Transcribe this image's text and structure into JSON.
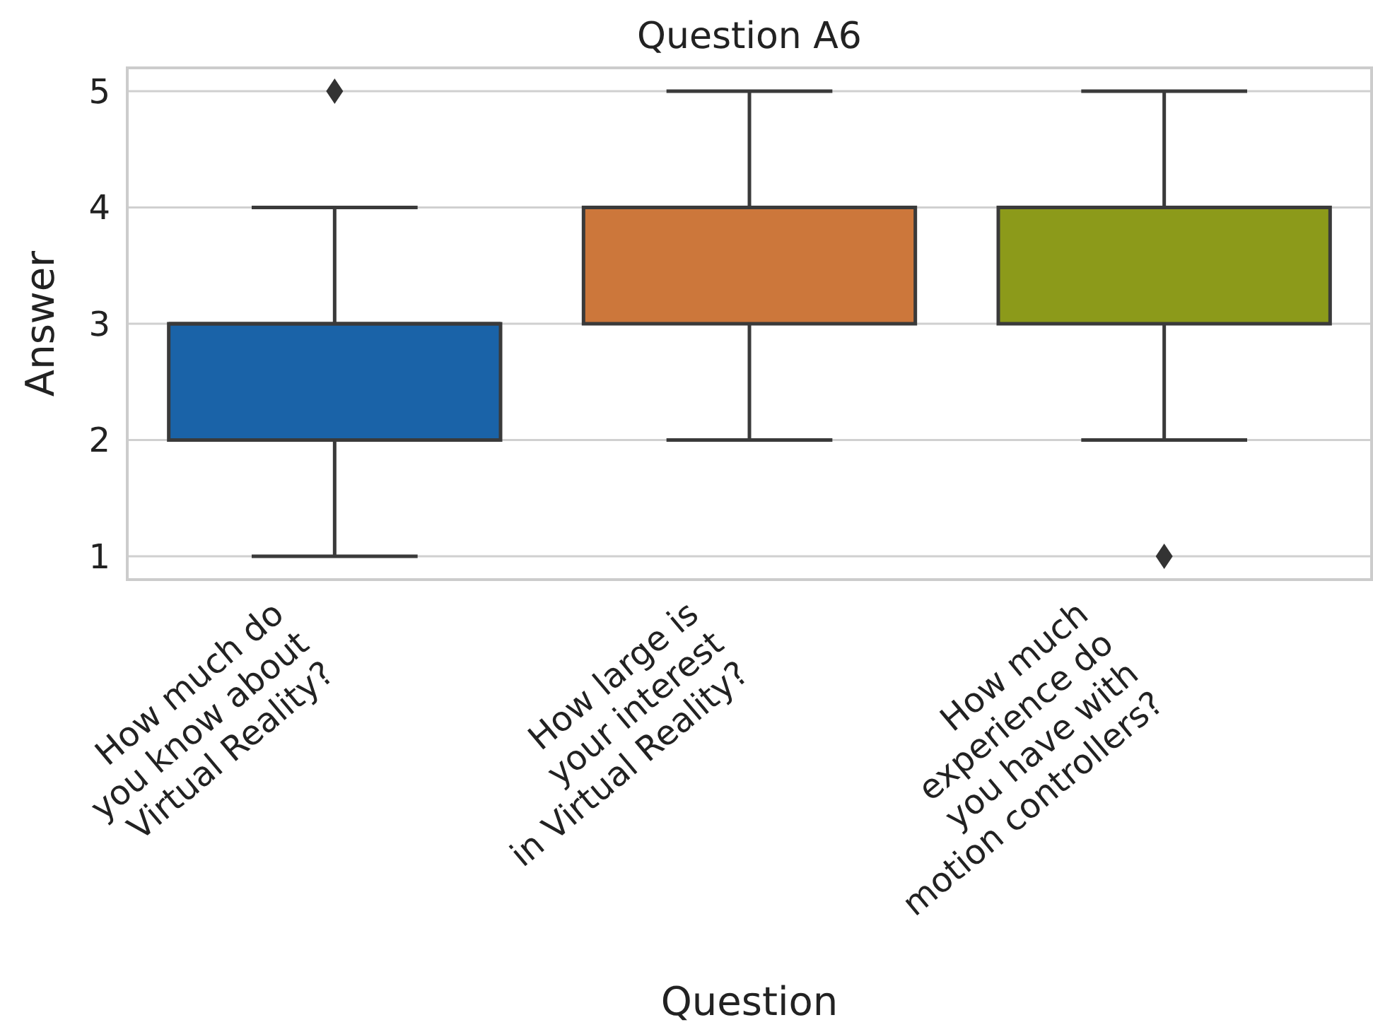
{
  "chart_data": {
    "type": "box",
    "title": "Question A6",
    "xlabel": "Question",
    "ylabel": "Answer",
    "categories": [
      "How much do\nyou know about\nVirtual Reality?",
      "How large is\nyour interest\nin Virtual Reality?",
      "How much\nexperience do\nyou have with\nmotion controllers?"
    ],
    "colors": [
      "#1a63a8",
      "#cc773b",
      "#8c9a1a"
    ],
    "boxes": [
      {
        "low": 1,
        "q1": 2,
        "median": 3,
        "q3": 3,
        "high": 4,
        "outliers": [
          5
        ]
      },
      {
        "low": 2,
        "q1": 3,
        "median": 4,
        "q3": 4,
        "high": 5
      },
      {
        "low": 2,
        "q1": 3,
        "median": 4,
        "q3": 4,
        "high": 5,
        "outliers": [
          1
        ]
      }
    ],
    "ylim": [
      0.8,
      5.2
    ],
    "yticks": [
      1,
      2,
      3,
      4,
      5
    ],
    "grid": "y",
    "marker": "diamond"
  }
}
